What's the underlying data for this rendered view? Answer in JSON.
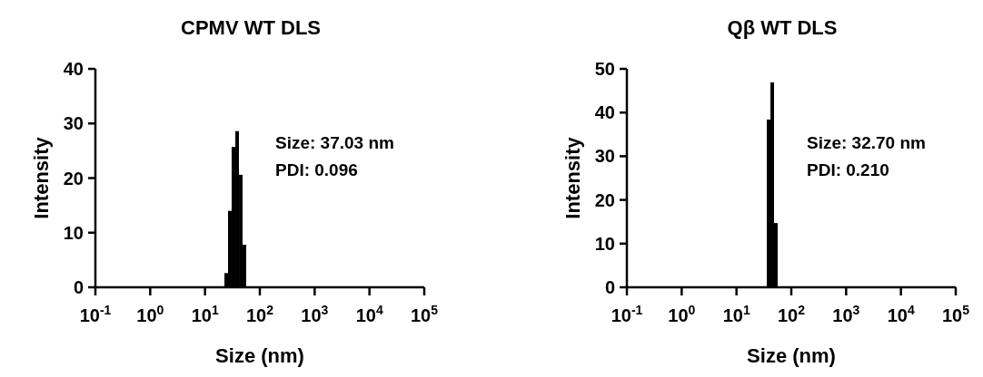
{
  "chart_data": [
    {
      "type": "histogram",
      "title": "CPMV WT DLS",
      "xlabel": "Size (nm)",
      "ylabel": "Intensity",
      "log": "x",
      "color": "#000000",
      "bins": [
        22.6,
        26.3,
        30.6,
        35.7,
        41.6,
        48.4,
        56.4
      ],
      "values": [
        2.6,
        14.0,
        25.7,
        28.6,
        20.6,
        7.8
      ],
      "xlim": [
        0.1,
        100000
      ],
      "xticks": [
        {
          "value": 0.1,
          "label": "10$^{-1}$"
        },
        {
          "value": 1,
          "label": "10$^{0}$"
        },
        {
          "value": 10,
          "label": "10$^{1}$"
        },
        {
          "value": 100,
          "label": "10$^{2}$"
        },
        {
          "value": 1000,
          "label": "10$^{3}$"
        },
        {
          "value": 10000,
          "label": "10$^{4}$"
        },
        {
          "value": 100000,
          "label": "10$^{5}$"
        }
      ],
      "ylim": [
        0,
        40
      ],
      "yticks": [
        0,
        10,
        20,
        30,
        40
      ],
      "grid": false,
      "annotations": [
        "Size: 37.03 nm",
        "PDI: 0.096"
      ]
    },
    {
      "type": "histogram",
      "title": "Qβ WT DLS",
      "xlabel": "Size (nm)",
      "ylabel": "Intensity",
      "log": "x",
      "color": "#000000",
      "bins": [
        35.7,
        41.6,
        48.4,
        56.4
      ],
      "values": [
        38.4,
        46.9,
        14.7
      ],
      "xlim": [
        0.1,
        100000
      ],
      "xticks": [
        {
          "value": 0.1,
          "label": "10$^{-1}$"
        },
        {
          "value": 1,
          "label": "10$^{0}$"
        },
        {
          "value": 10,
          "label": "10$^{1}$"
        },
        {
          "value": 100,
          "label": "10$^{2}$"
        },
        {
          "value": 1000,
          "label": "10$^{3}$"
        },
        {
          "value": 10000,
          "label": "10$^{4}$"
        },
        {
          "value": 100000,
          "label": "10$^{5}$"
        }
      ],
      "ylim": [
        0,
        50
      ],
      "yticks": [
        0,
        10,
        20,
        30,
        40,
        50
      ],
      "grid": false,
      "annotations": [
        "Size: 32.70 nm",
        "PDI: 0.210"
      ]
    }
  ]
}
